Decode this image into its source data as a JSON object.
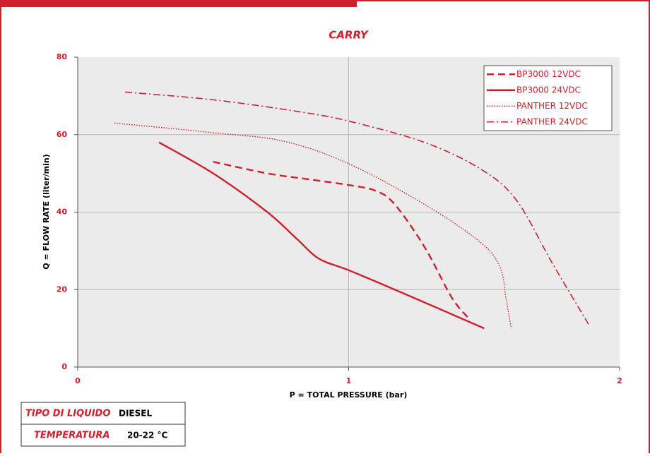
{
  "chart_data": {
    "type": "line",
    "title": "CARRY",
    "xlabel": "P = TOTAL PRESSURE (bar)",
    "ylabel": "Q = FLOW RATE (liter/min)",
    "xlim": [
      0,
      2
    ],
    "ylim": [
      0,
      80
    ],
    "xticks": [
      0,
      1,
      2
    ],
    "yticks": [
      0,
      20,
      40,
      60,
      80
    ],
    "grid": true,
    "legend": "upper right",
    "series": [
      {
        "name": "BP3000 12VDC",
        "color": "#d0202e",
        "linestyle": "dashed",
        "x": [
          0.5,
          0.7,
          0.85,
          1,
          1.1,
          1.17,
          1.28,
          1.38,
          1.44
        ],
        "values": [
          53,
          50,
          48.5,
          47,
          45.5,
          42,
          31,
          18,
          12.8
        ]
      },
      {
        "name": "BP3000 24VDC",
        "color": "#d0202e",
        "linestyle": "solid",
        "x": [
          0.3,
          0.5,
          0.7,
          0.81,
          0.89,
          1,
          1.17,
          1.5
        ],
        "values": [
          58,
          50,
          40,
          33,
          28,
          25,
          20,
          10
        ]
      },
      {
        "name": "PANTHER 12VDC",
        "color": "#d0202e",
        "linestyle": "dotted",
        "x": [
          0.135,
          0.5,
          0.76,
          1,
          1.28,
          1.49,
          1.56,
          1.58,
          1.6
        ],
        "values": [
          63,
          60.5,
          58.3,
          52.5,
          42,
          32,
          25.5,
          18,
          10
        ]
      },
      {
        "name": "PANTHER 24VDC",
        "color": "#d0202e",
        "linestyle": "dashdot",
        "x": [
          0.175,
          0.5,
          0.81,
          1,
          1.28,
          1.49,
          1.62,
          1.75,
          1.89
        ],
        "values": [
          71,
          69,
          66,
          63.5,
          58,
          51,
          43,
          27,
          10.5
        ]
      }
    ]
  },
  "info_table": {
    "rows": [
      [
        "TIPO DI LIQUIDO",
        "DIESEL"
      ],
      [
        "TEMPERATURA",
        "20-22 °C"
      ]
    ]
  }
}
